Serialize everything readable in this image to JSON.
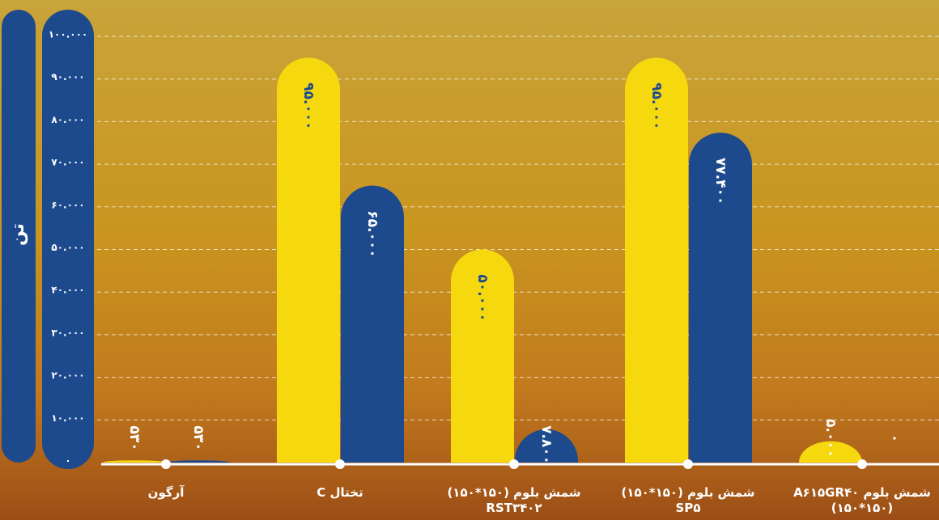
{
  "chart_data": {
    "type": "bar",
    "y_label": "تن",
    "categories": [
      "آرگون",
      "تختال C",
      "شمش بلوم (۱۵۰*۱۵۰) RST۳۴۰۲",
      "شمش بلوم (۱۵۰*۱۵۰) SP۵",
      "شمش بلوم A۶۱۵GR۴۰ (۱۵۰*۱۵۰)"
    ],
    "series": [
      {
        "color": "#f6d80f",
        "label_color": "#1d4a8c",
        "values": [
          530,
          95000,
          50000,
          95000,
          5000
        ],
        "value_labels": [
          "۵۳۰",
          "۹۵.۰۰۰",
          "۵۰.۰۰۰",
          "۹۵.۰۰۰",
          "۵.۰۰۰"
        ]
      },
      {
        "color": "#1d4a8c",
        "label_color": "#ffffff",
        "values": [
          530,
          65000,
          7800,
          77400,
          0
        ],
        "value_labels": [
          "۵۳۰",
          "۶۵.۰۰۰",
          "۷.۸۰۰",
          "۷۷.۴۰۰",
          "۰"
        ]
      }
    ],
    "ylim": [
      0,
      100000
    ],
    "yticks": [
      {
        "value": 0,
        "label": "۰"
      },
      {
        "value": 10000,
        "label": "۱۰.۰۰۰"
      },
      {
        "value": 20000,
        "label": "۲۰.۰۰۰"
      },
      {
        "value": 30000,
        "label": "۳۰.۰۰۰"
      },
      {
        "value": 40000,
        "label": "۴۰.۰۰۰"
      },
      {
        "value": 50000,
        "label": "۵۰.۰۰۰"
      },
      {
        "value": 60000,
        "label": "۶۰.۰۰۰"
      },
      {
        "value": 70000,
        "label": "۷۰.۰۰۰"
      },
      {
        "value": 80000,
        "label": "۸۰.۰۰۰"
      },
      {
        "value": 90000,
        "label": "۹۰.۰۰۰"
      },
      {
        "value": 100000,
        "label": "۱۰۰.۰۰۰"
      }
    ],
    "grid": true
  }
}
